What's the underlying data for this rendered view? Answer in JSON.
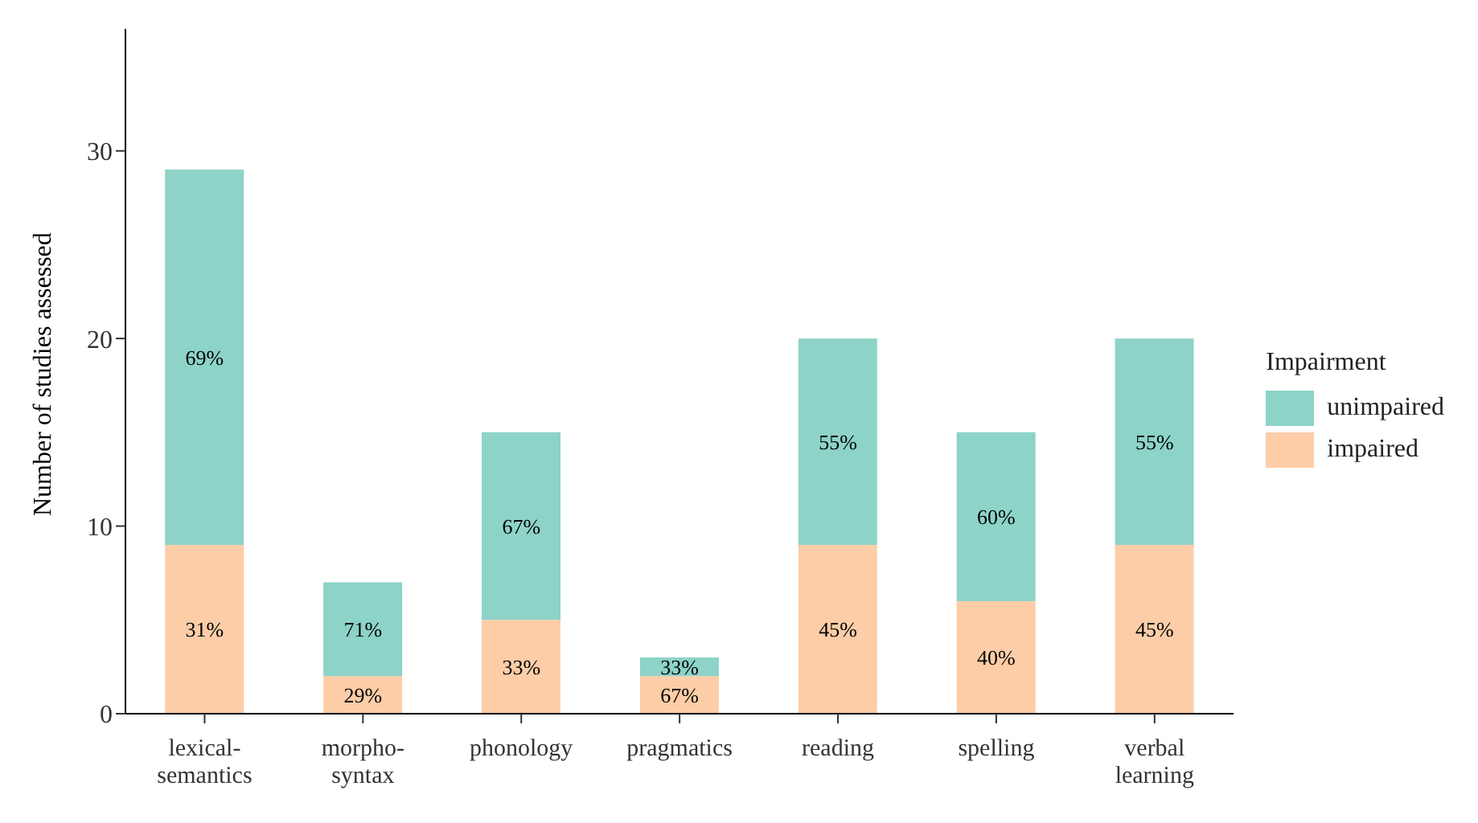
{
  "chart_data": {
    "type": "bar",
    "stacked": true,
    "ylabel": "Number of studies assessed",
    "legend_title": "Impairment",
    "legend": "right",
    "categories": [
      "lexical-semantics",
      "morpho-syntax",
      "phonology",
      "pragmatics",
      "reading",
      "spelling",
      "verbal learning"
    ],
    "series": [
      {
        "name": "impaired",
        "color": "#fdcda8",
        "values": [
          9,
          2,
          5,
          2,
          9,
          6,
          9
        ]
      },
      {
        "name": "unimpaired",
        "color": "#8dd3c7",
        "values": [
          20,
          5,
          10,
          1,
          11,
          9,
          11
        ]
      }
    ],
    "annotations": [
      "31%",
      "69%",
      "29%",
      "71%",
      "33%",
      "67%",
      "67%",
      "33%",
      "45%",
      "55%",
      "40%",
      "60%",
      "45%",
      "55%"
    ],
    "ylim": [
      0,
      36.5
    ],
    "yticks": [
      0,
      10,
      20,
      30
    ],
    "grid": false
  }
}
